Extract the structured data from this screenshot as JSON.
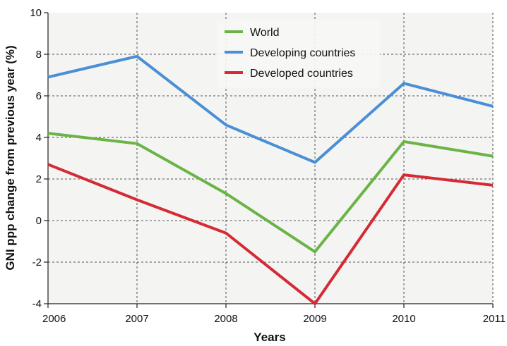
{
  "chart_data": {
    "type": "line",
    "title": "",
    "xlabel": "Years",
    "ylabel": "GNI ppp change from previous year (%)",
    "x": [
      "2006",
      "2007",
      "2008",
      "2009",
      "2010",
      "2011"
    ],
    "ylim": [
      -4,
      10
    ],
    "yticks": [
      "-4",
      "-2",
      "0",
      "2",
      "4",
      "6",
      "8",
      "10"
    ],
    "grid": true,
    "legend_position": "top-center",
    "series": [
      {
        "name": "World",
        "color": "#6ab446",
        "values": [
          4.2,
          3.7,
          1.3,
          -1.5,
          3.8,
          3.1
        ]
      },
      {
        "name": "Developing countries",
        "color": "#4a8fd6",
        "values": [
          6.9,
          7.9,
          4.6,
          2.8,
          6.6,
          5.5
        ]
      },
      {
        "name": "Developed countries",
        "color": "#d52a35",
        "values": [
          2.7,
          1.0,
          -0.6,
          -4.0,
          2.2,
          1.7
        ]
      }
    ]
  }
}
